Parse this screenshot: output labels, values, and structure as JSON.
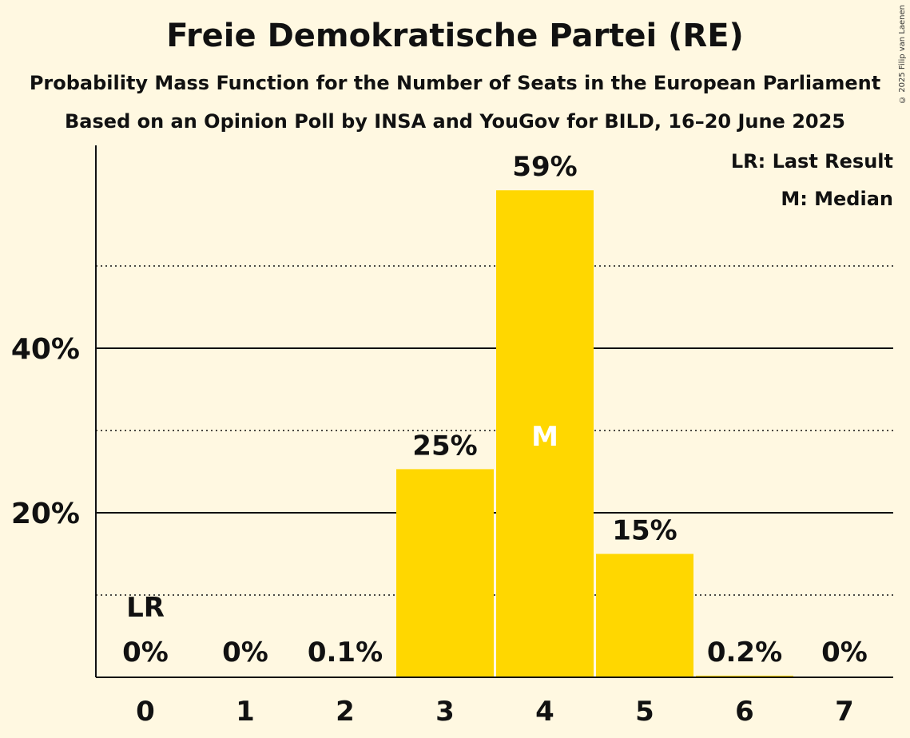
{
  "title": "Freie Demokratische Partei (RE)",
  "subtitle": "Probability Mass Function for the Number of Seats in the European Parliament",
  "subtitle2": "Based on an Opinion Poll by INSA and YouGov for BILD, 16–20 June 2025",
  "copyright": "© 2025 Filip van Laenen",
  "legend": {
    "last_result": "LR: Last Result",
    "median": "M: Median"
  },
  "colors": {
    "bar": "#FFD700",
    "background": "#FFF8E1",
    "axis": "#111111"
  },
  "chart_data": {
    "type": "bar",
    "categories": [
      "0",
      "1",
      "2",
      "3",
      "4",
      "5",
      "6",
      "7"
    ],
    "values": [
      0,
      0,
      0.1,
      25.3,
      59.2,
      15.0,
      0.2,
      0
    ],
    "value_labels": [
      "0%",
      "0%",
      "0.1%",
      "25%",
      "59%",
      "15%",
      "0.2%",
      "0%"
    ],
    "y_ticks": [
      20,
      40
    ],
    "y_tick_labels": [
      "20%",
      "40%"
    ],
    "y_minor_gridlines": [
      10,
      30,
      50
    ],
    "ylim": [
      0,
      62
    ],
    "last_result_category": "0",
    "last_result_label": "LR",
    "median_category": "4",
    "median_label": "M",
    "legend_position": "top-right",
    "grid": true
  }
}
